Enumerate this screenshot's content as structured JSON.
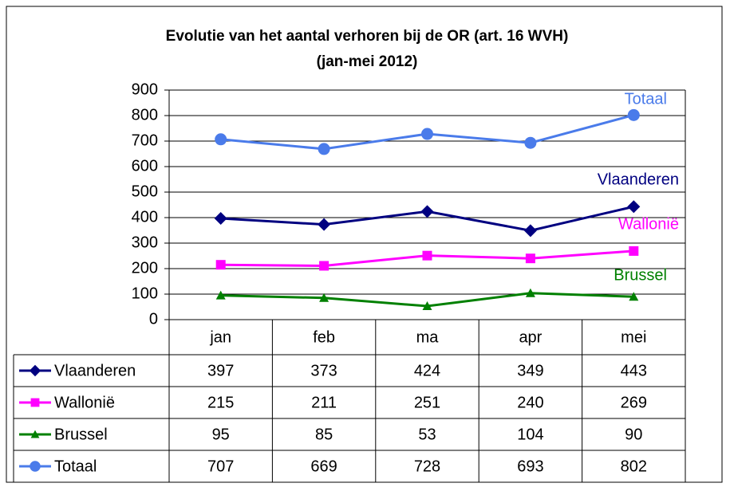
{
  "chart_data": {
    "type": "line",
    "title": [
      "Evolutie van het aantal verhoren bij de OR (art. 16 WVH)",
      "(jan-mei 2012)"
    ],
    "categories": [
      "jan",
      "feb",
      "ma",
      "apr",
      "mei"
    ],
    "series": [
      {
        "name": "Vlaanderen",
        "color": "#000080",
        "marker": "diamond",
        "values": [
          397,
          373,
          424,
          349,
          443
        ]
      },
      {
        "name": "Wallonië",
        "color": "#ff00ff",
        "marker": "square",
        "values": [
          215,
          211,
          251,
          240,
          269
        ]
      },
      {
        "name": "Brussel",
        "color": "#008000",
        "marker": "triangle",
        "values": [
          95,
          85,
          53,
          104,
          90
        ]
      },
      {
        "name": "Totaal",
        "color": "#4a7bea",
        "marker": "circle",
        "values": [
          707,
          669,
          728,
          693,
          802
        ]
      }
    ],
    "ylim": [
      0,
      900
    ],
    "yticks": [
      0,
      100,
      200,
      300,
      400,
      500,
      600,
      700,
      800,
      900
    ],
    "grid": true
  }
}
